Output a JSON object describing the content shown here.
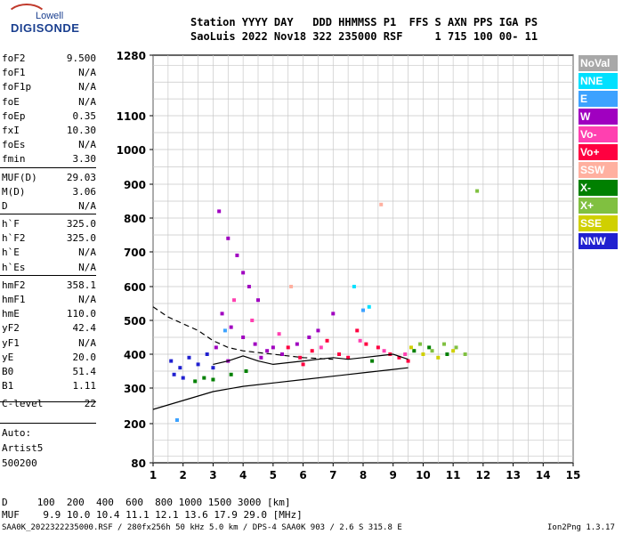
{
  "logo": {
    "top": "Lowell",
    "main": "DIGISONDE"
  },
  "header": {
    "line1": "Station YYYY DAY   DDD HHMMSS P1  FFS S AXN PPS IGA PS",
    "line2": "SaoLuis 2022 Nov18 322 235000 RSF     1 715 100 00- 11"
  },
  "params": {
    "group1": [
      {
        "name": "foF2",
        "value": "9.500"
      },
      {
        "name": "foF1",
        "value": "N/A"
      },
      {
        "name": "foF1p",
        "value": "N/A"
      },
      {
        "name": "foE",
        "value": "N/A"
      },
      {
        "name": "foEp",
        "value": "0.35"
      },
      {
        "name": "fxI",
        "value": "10.30"
      },
      {
        "name": "foEs",
        "value": "N/A"
      },
      {
        "name": "fmin",
        "value": "3.30"
      }
    ],
    "group2": [
      {
        "name": "MUF(D)",
        "value": "29.03"
      },
      {
        "name": "M(D)",
        "value": "3.06"
      },
      {
        "name": "D",
        "value": "N/A"
      }
    ],
    "group3": [
      {
        "name": "h`F",
        "value": "325.0"
      },
      {
        "name": "h`F2",
        "value": "325.0"
      },
      {
        "name": "h`E",
        "value": "N/A"
      },
      {
        "name": "h`Es",
        "value": "N/A"
      }
    ],
    "group4": [
      {
        "name": "hmF2",
        "value": "358.1"
      },
      {
        "name": "hmF1",
        "value": "N/A"
      },
      {
        "name": "hmE",
        "value": "110.0"
      },
      {
        "name": "yF2",
        "value": "42.4"
      },
      {
        "name": "yF1",
        "value": "N/A"
      },
      {
        "name": "yE",
        "value": "20.0"
      },
      {
        "name": "B0",
        "value": "51.4"
      },
      {
        "name": "B1",
        "value": "1.11"
      }
    ],
    "group5": [
      {
        "name": "C-level",
        "value": "22"
      }
    ]
  },
  "auto": {
    "label": "Auto:",
    "software": "Artist5",
    "version": "500200"
  },
  "legend": [
    {
      "label": "NoVal",
      "color": "#a8a8a8"
    },
    {
      "label": "NNE",
      "color": "#00e0ff"
    },
    {
      "label": "E",
      "color": "#3da2ff"
    },
    {
      "label": "W",
      "color": "#a000c0"
    },
    {
      "label": "Vo-",
      "color": "#ff40b0"
    },
    {
      "label": "Vo+",
      "color": "#ff0040"
    },
    {
      "label": "SSW",
      "color": "#ffb0a0"
    },
    {
      "label": "X-",
      "color": "#008000"
    },
    {
      "label": "X+",
      "color": "#80c040"
    },
    {
      "label": "SSE",
      "color": "#d0d000"
    },
    {
      "label": "NNW",
      "color": "#2020d0"
    }
  ],
  "footer": {
    "d_row": "D     100  200  400  600  800 1000 1500 3000 [km]",
    "muf_row": "MUF    9.9 10.0 10.4 11.1 12.1 13.6 17.9 29.0 [MHz]",
    "file_info": "SAA0K_2022322235000.RSF / 280fx256h 50 kHz 5.0 km / DPS-4 SAA0K 903 / 2.6 S 315.8 E",
    "version": "Ion2Png 1.3.17"
  },
  "chart_data": {
    "type": "scatter",
    "title": "",
    "xlabel": "",
    "ylabel": "",
    "xlim": [
      1,
      15
    ],
    "ylim": [
      80,
      1280
    ],
    "x_ticks": [
      1,
      2,
      3,
      4,
      5,
      6,
      7,
      8,
      9,
      10,
      11,
      12,
      13,
      14,
      15
    ],
    "y_ticks": [
      80,
      200,
      300,
      400,
      500,
      600,
      700,
      800,
      900,
      1000,
      1100,
      1280
    ],
    "y_scale": "nonlinear (virtual height, expanded 300-900 km)",
    "grid": true,
    "series": [
      {
        "name": "W",
        "color": "#a000c0",
        "points": [
          [
            3.2,
            820
          ],
          [
            3.5,
            740
          ],
          [
            3.8,
            690
          ],
          [
            4.0,
            640
          ],
          [
            4.2,
            600
          ],
          [
            4.5,
            560
          ],
          [
            3.3,
            520
          ],
          [
            3.6,
            480
          ],
          [
            4.0,
            450
          ],
          [
            4.4,
            430
          ],
          [
            4.8,
            410
          ],
          [
            3.1,
            420
          ],
          [
            3.5,
            380
          ],
          [
            4.6,
            390
          ],
          [
            5.0,
            420
          ],
          [
            5.3,
            400
          ],
          [
            5.8,
            430
          ],
          [
            6.2,
            450
          ],
          [
            6.5,
            470
          ],
          [
            7.0,
            520
          ]
        ]
      },
      {
        "name": "Vo+",
        "color": "#ff0040",
        "points": [
          [
            5.5,
            420
          ],
          [
            5.9,
            390
          ],
          [
            6.3,
            410
          ],
          [
            6.8,
            440
          ],
          [
            7.2,
            400
          ],
          [
            7.8,
            470
          ],
          [
            8.1,
            430
          ],
          [
            8.5,
            420
          ],
          [
            8.9,
            400
          ],
          [
            9.2,
            390
          ],
          [
            9.5,
            380
          ],
          [
            6.0,
            370
          ],
          [
            7.5,
            390
          ]
        ]
      },
      {
        "name": "Vo-",
        "color": "#ff40b0",
        "points": [
          [
            3.7,
            560
          ],
          [
            4.3,
            500
          ],
          [
            5.2,
            460
          ],
          [
            6.6,
            420
          ],
          [
            7.9,
            440
          ],
          [
            8.7,
            410
          ],
          [
            9.4,
            400
          ]
        ]
      },
      {
        "name": "NNW",
        "color": "#2020d0",
        "points": [
          [
            1.6,
            380
          ],
          [
            1.9,
            360
          ],
          [
            2.2,
            390
          ],
          [
            2.5,
            370
          ],
          [
            2.8,
            400
          ],
          [
            3.0,
            360
          ],
          [
            2.0,
            330
          ],
          [
            1.7,
            340
          ]
        ]
      },
      {
        "name": "X-",
        "color": "#008000",
        "points": [
          [
            2.4,
            320
          ],
          [
            2.7,
            330
          ],
          [
            3.0,
            325
          ],
          [
            3.6,
            340
          ],
          [
            4.1,
            350
          ],
          [
            8.3,
            380
          ],
          [
            9.7,
            410
          ],
          [
            10.2,
            420
          ],
          [
            10.8,
            400
          ]
        ]
      },
      {
        "name": "X+",
        "color": "#80c040",
        "points": [
          [
            9.9,
            430
          ],
          [
            10.3,
            410
          ],
          [
            10.7,
            430
          ],
          [
            11.1,
            420
          ],
          [
            11.4,
            400
          ],
          [
            11.8,
            880
          ]
        ]
      },
      {
        "name": "SSE",
        "color": "#d0d000",
        "points": [
          [
            10.0,
            400
          ],
          [
            10.5,
            390
          ],
          [
            11.0,
            410
          ],
          [
            9.6,
            420
          ]
        ]
      },
      {
        "name": "E",
        "color": "#3da2ff",
        "points": [
          [
            1.8,
            210
          ],
          [
            3.4,
            470
          ],
          [
            8.0,
            530
          ]
        ]
      },
      {
        "name": "NNE",
        "color": "#00e0ff",
        "points": [
          [
            8.2,
            540
          ],
          [
            7.7,
            600
          ]
        ]
      },
      {
        "name": "SSW",
        "color": "#ffb0a0",
        "points": [
          [
            5.6,
            600
          ],
          [
            8.6,
            840
          ]
        ]
      }
    ],
    "profile_lines": [
      {
        "name": "profile-lower",
        "points": [
          [
            1,
            240
          ],
          [
            2,
            265
          ],
          [
            3,
            290
          ],
          [
            4,
            305
          ],
          [
            5,
            315
          ],
          [
            6,
            325
          ],
          [
            7,
            335
          ],
          [
            8,
            345
          ],
          [
            9,
            355
          ],
          [
            9.5,
            360
          ]
        ]
      },
      {
        "name": "profile-dashed",
        "points": [
          [
            1,
            540
          ],
          [
            1.5,
            510
          ],
          [
            2,
            490
          ],
          [
            2.5,
            470
          ],
          [
            3,
            440
          ],
          [
            3.5,
            420
          ],
          [
            4,
            410
          ],
          [
            5,
            400
          ],
          [
            6,
            390
          ],
          [
            7,
            385
          ]
        ]
      },
      {
        "name": "trace-fit",
        "points": [
          [
            3,
            370
          ],
          [
            3.5,
            380
          ],
          [
            4,
            395
          ],
          [
            4.5,
            380
          ],
          [
            5,
            370
          ],
          [
            5.5,
            375
          ],
          [
            6,
            380
          ],
          [
            6.5,
            385
          ],
          [
            7,
            390
          ],
          [
            7.5,
            385
          ],
          [
            8,
            390
          ],
          [
            8.5,
            395
          ],
          [
            9,
            400
          ],
          [
            9.5,
            385
          ]
        ]
      }
    ]
  }
}
